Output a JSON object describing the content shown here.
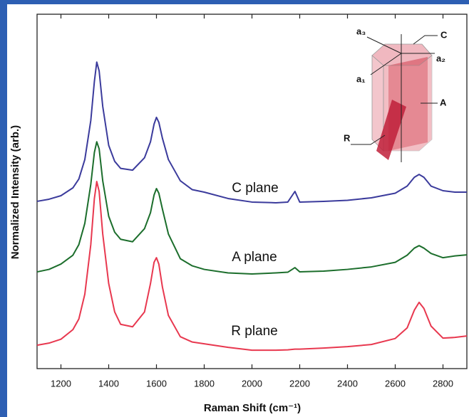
{
  "chart_data": {
    "type": "line",
    "x_label": "Raman Shift (cm⁻¹)",
    "y_label": "Normalized Intensity (arb.)",
    "xlim": [
      1100,
      2900
    ],
    "xticks": [
      1200,
      1400,
      1600,
      1800,
      2000,
      2200,
      2400,
      2600,
      2800
    ],
    "ylim": [
      0,
      100
    ],
    "x": [
      1100,
      1150,
      1200,
      1250,
      1275,
      1300,
      1325,
      1340,
      1350,
      1360,
      1375,
      1400,
      1425,
      1450,
      1500,
      1550,
      1575,
      1590,
      1600,
      1610,
      1625,
      1650,
      1700,
      1750,
      1800,
      1900,
      2000,
      2100,
      2150,
      2180,
      2200,
      2300,
      2400,
      2500,
      2600,
      2650,
      2680,
      2700,
      2720,
      2750,
      2800,
      2850,
      2900
    ],
    "series": [
      {
        "name": "C plane",
        "color": "#3b3b9c",
        "values": [
          47.2,
          47.8,
          48.8,
          51,
          53.5,
          59,
          70,
          81,
          86.5,
          84,
          74,
          63,
          58.5,
          56.5,
          56,
          59.5,
          64,
          69,
          70.9,
          69.5,
          65,
          59,
          53,
          50.5,
          49.8,
          48,
          47,
          46.8,
          47,
          50,
          47,
          47.2,
          47.5,
          48.2,
          49.5,
          51.5,
          54,
          54.8,
          54,
          51.5,
          50.2,
          49.8,
          49.8
        ]
      },
      {
        "name": "A plane",
        "color": "#1c6e2c",
        "values": [
          27.3,
          28,
          29.5,
          32,
          35,
          41,
          52,
          61,
          64,
          62,
          53,
          43,
          38.5,
          36.5,
          35.8,
          39.5,
          44,
          49,
          50.8,
          49.5,
          45,
          38,
          31,
          29,
          28,
          27,
          26.7,
          27,
          27.2,
          28.5,
          27.3,
          27.5,
          28,
          28.7,
          30,
          32,
          34,
          34.7,
          34,
          32.5,
          31.3,
          31.8,
          32.1
        ]
      },
      {
        "name": "R plane",
        "color": "#e8384f",
        "values": [
          6.6,
          7.2,
          8.3,
          11,
          14,
          21,
          35,
          48,
          52.8,
          50,
          38,
          24,
          16,
          12.5,
          11.8,
          16,
          24,
          30,
          31.3,
          29.5,
          23,
          15,
          9,
          7.5,
          7,
          6,
          5.2,
          5.2,
          5.3,
          5.5,
          5.5,
          5.8,
          6.2,
          6.8,
          8.5,
          11.5,
          16.5,
          18.7,
          17,
          12,
          8.6,
          8.8,
          9.2
        ]
      }
    ],
    "inset_labels": [
      "a₃",
      "C",
      "a₂",
      "a₁",
      "A",
      "R"
    ]
  }
}
